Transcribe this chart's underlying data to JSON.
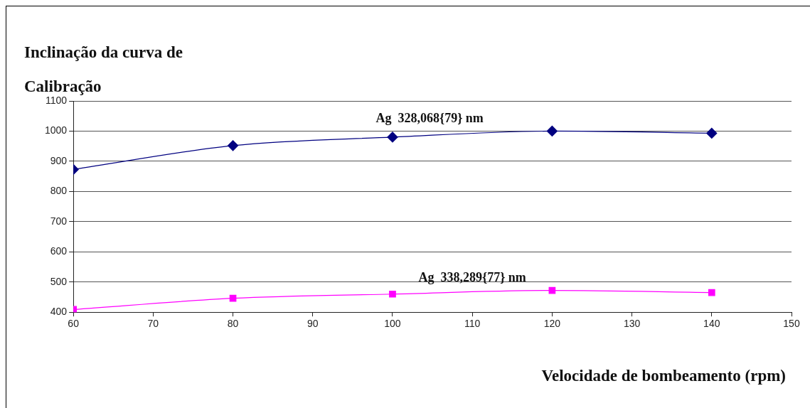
{
  "chart_data": {
    "type": "line",
    "title": "Inclinação da curva de\nCalibração",
    "xlabel": "Velocidade de bombeamento (rpm)",
    "x": [
      60,
      80,
      100,
      120,
      140
    ],
    "series": [
      {
        "name": "Ag  328,068{79} nm",
        "color": "#000080",
        "values": [
          873,
          952,
          980,
          1000,
          993
        ],
        "marker": "diamond"
      },
      {
        "name": "Ag  338,289{77} nm",
        "color": "#ff00ff",
        "values": [
          409,
          446,
          460,
          472,
          465
        ],
        "marker": "square"
      }
    ],
    "xlim": [
      60,
      150
    ],
    "xticks": [
      60,
      70,
      80,
      90,
      100,
      110,
      120,
      130,
      140,
      150
    ],
    "ylim": [
      400,
      1100
    ],
    "yticks": [
      400,
      500,
      600,
      700,
      800,
      900,
      1000,
      1100
    ],
    "grid": "y",
    "legend": false
  }
}
